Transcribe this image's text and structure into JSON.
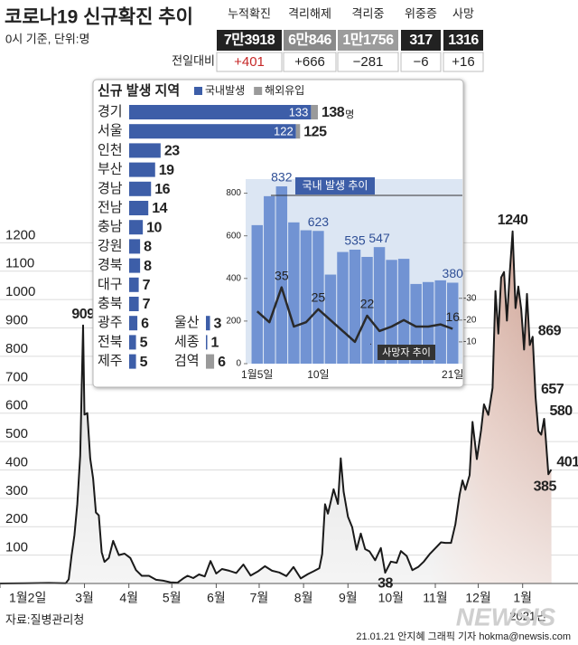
{
  "header": {
    "title": "코로나19 신규확진 추이",
    "subtitle": "0시 기준, 단위:명"
  },
  "stats": {
    "row_label": "전일대비",
    "columns": [
      {
        "name": "누적확진",
        "value": "7만3918",
        "change": "+401"
      },
      {
        "name": "격리해제",
        "value": "6만846",
        "change": "+666"
      },
      {
        "name": "격리중",
        "value": "1만1756",
        "change": "−281"
      },
      {
        "name": "위중증",
        "value": "317",
        "change": "−6"
      },
      {
        "name": "사망",
        "value": "1316",
        "change": "+16"
      }
    ]
  },
  "chart_data": [
    {
      "type": "area",
      "color": "#1a1a1a",
      "x": [
        "2020-01-02",
        "2020-01-20",
        "2020-02-05",
        "2020-02-17",
        "2020-02-19",
        "2020-02-21",
        "2020-02-23",
        "2020-02-25",
        "2020-02-27",
        "2020-02-29",
        "2020-03-01",
        "2020-03-03",
        "2020-03-05",
        "2020-03-07",
        "2020-03-09",
        "2020-03-11",
        "2020-03-13",
        "2020-03-15",
        "2020-03-18",
        "2020-03-21",
        "2020-03-25",
        "2020-03-29",
        "2020-04-02",
        "2020-04-06",
        "2020-04-10",
        "2020-04-15",
        "2020-04-20",
        "2020-04-25",
        "2020-04-30",
        "2020-05-05",
        "2020-05-09",
        "2020-05-12",
        "2020-05-16",
        "2020-05-20",
        "2020-05-24",
        "2020-05-28",
        "2020-06-01",
        "2020-06-05",
        "2020-06-10",
        "2020-06-15",
        "2020-06-20",
        "2020-06-25",
        "2020-06-30",
        "2020-07-05",
        "2020-07-10",
        "2020-07-15",
        "2020-07-20",
        "2020-07-25",
        "2020-07-30",
        "2020-08-04",
        "2020-08-08",
        "2020-08-12",
        "2020-08-14",
        "2020-08-16",
        "2020-08-18",
        "2020-08-20",
        "2020-08-22",
        "2020-08-25",
        "2020-08-27",
        "2020-08-29",
        "2020-09-01",
        "2020-09-04",
        "2020-09-07",
        "2020-09-10",
        "2020-09-13",
        "2020-09-16",
        "2020-09-20",
        "2020-09-24",
        "2020-09-27",
        "2020-10-01",
        "2020-10-05",
        "2020-10-08",
        "2020-10-12",
        "2020-10-16",
        "2020-10-20",
        "2020-10-24",
        "2020-10-28",
        "2020-11-01",
        "2020-11-05",
        "2020-11-08",
        "2020-11-12",
        "2020-11-15",
        "2020-11-18",
        "2020-11-20",
        "2020-11-22",
        "2020-11-25",
        "2020-11-27",
        "2020-11-30",
        "2020-12-03",
        "2020-12-05",
        "2020-12-08",
        "2020-12-11",
        "2020-12-13",
        "2020-12-15",
        "2020-12-17",
        "2020-12-19",
        "2020-12-21",
        "2020-12-23",
        "2020-12-25",
        "2020-12-27",
        "2020-12-29",
        "2020-12-31",
        "2021-01-02",
        "2021-01-04",
        "2021-01-06",
        "2021-01-08",
        "2021-01-10",
        "2021-01-12",
        "2021-01-14",
        "2021-01-16",
        "2021-01-17",
        "2021-01-19",
        "2021-01-21"
      ],
      "values": [
        0,
        1,
        2,
        1,
        15,
        100,
        170,
        280,
        450,
        909,
        595,
        600,
        440,
        370,
        250,
        240,
        110,
        76,
        90,
        150,
        100,
        105,
        90,
        47,
        27,
        27,
        13,
        10,
        4,
        3,
        18,
        27,
        19,
        32,
        25,
        79,
        35,
        51,
        45,
        37,
        67,
        28,
        42,
        61,
        45,
        39,
        26,
        58,
        18,
        33,
        43,
        54,
        103,
        279,
        246,
        288,
        332,
        280,
        441,
        323,
        235,
        198,
        119,
        176,
        121,
        113,
        82,
        125,
        38,
        77,
        73,
        114,
        97,
        47,
        58,
        77,
        103,
        124,
        145,
        143,
        143,
        208,
        313,
        363,
        330,
        382,
        569,
        438,
        540,
        631,
        594,
        689,
        1030,
        880,
        1078,
        1097,
        926,
        1092,
        1240,
        970,
        1046,
        967,
        824,
        1020,
        840,
        869,
        657,
        537,
        524,
        580,
        520,
        385,
        401
      ],
      "value_labels": [
        null,
        null,
        null,
        null,
        null,
        null,
        null,
        null,
        null,
        "909",
        null,
        null,
        null,
        null,
        null,
        null,
        null,
        null,
        null,
        null,
        null,
        null,
        null,
        null,
        null,
        null,
        null,
        null,
        null,
        null,
        null,
        null,
        null,
        null,
        null,
        null,
        null,
        null,
        null,
        null,
        null,
        null,
        null,
        null,
        null,
        null,
        null,
        null,
        null,
        null,
        null,
        null,
        null,
        null,
        null,
        null,
        null,
        null,
        null,
        null,
        null,
        null,
        null,
        null,
        null,
        null,
        null,
        null,
        "38",
        null,
        null,
        null,
        null,
        null,
        null,
        null,
        null,
        null,
        null,
        null,
        null,
        null,
        null,
        null,
        null,
        null,
        null,
        null,
        null,
        null,
        null,
        null,
        null,
        null,
        null,
        null,
        null,
        null,
        "1240",
        null,
        null,
        null,
        null,
        null,
        null,
        "869",
        "657",
        null,
        null,
        "580",
        null,
        "385",
        "401"
      ],
      "xlim": [
        "2020-01-02",
        "2021-01-22"
      ],
      "xticks": [
        {
          "value": "2020-01-02",
          "label": "1월2일"
        },
        {
          "value": "2020-03-01",
          "label": "3월"
        },
        {
          "value": "2020-04-01",
          "label": "4월"
        },
        {
          "value": "2020-05-01",
          "label": "5월"
        },
        {
          "value": "2020-06-01",
          "label": "6월"
        },
        {
          "value": "2020-07-01",
          "label": "7월"
        },
        {
          "value": "2020-08-01",
          "label": "8월"
        },
        {
          "value": "2020-09-01",
          "label": "9월"
        },
        {
          "value": "2020-10-01",
          "label": "10월"
        },
        {
          "value": "2020-11-01",
          "label": "11월"
        },
        {
          "value": "2020-12-01",
          "label": "12월"
        },
        {
          "value": "2021-01-01",
          "label": "1월"
        }
      ],
      "x_sublabel": "2021년",
      "ylim": [
        0,
        1300
      ],
      "yticks": [
        100,
        200,
        300,
        400,
        500,
        600,
        700,
        800,
        900,
        1000,
        1100,
        1200
      ],
      "grid": true
    },
    {
      "type": "hbar-stacked",
      "title": "신규 발생 지역",
      "unit": "명",
      "categories": [
        "경기",
        "서울",
        "인천",
        "부산",
        "경남",
        "전남",
        "충남",
        "강원",
        "경북",
        "대구",
        "충북",
        "광주",
        "전북",
        "제주",
        "울산",
        "세종",
        "검역"
      ],
      "series": [
        {
          "name": "국내발생",
          "color": "#3d5ea8",
          "values": [
            133,
            122,
            23,
            19,
            16,
            14,
            10,
            8,
            8,
            7,
            7,
            6,
            5,
            5,
            3,
            1,
            0
          ],
          "value_labels": [
            "133",
            "122",
            null,
            null,
            null,
            null,
            null,
            null,
            null,
            null,
            null,
            null,
            null,
            null,
            null,
            null,
            null
          ]
        },
        {
          "name": "해외유입",
          "color": "#9a9a9a",
          "values": [
            5,
            3,
            0,
            0,
            0,
            0,
            0,
            0,
            0,
            0,
            0,
            0,
            0,
            0,
            0,
            0,
            6
          ]
        }
      ],
      "totals": [
        138,
        125,
        23,
        19,
        16,
        14,
        10,
        8,
        8,
        7,
        7,
        6,
        5,
        5,
        3,
        1,
        6
      ],
      "xlim": [
        0,
        140
      ]
    },
    {
      "type": "bar-line",
      "categories": [
        "1월5일",
        null,
        null,
        null,
        null,
        "10일",
        null,
        null,
        null,
        null,
        null,
        null,
        null,
        null,
        null,
        null,
        "21일"
      ],
      "series": [
        {
          "name": "국내 발생 추이",
          "color": "#7193d3",
          "values": [
            650,
            786,
            832,
            663,
            626,
            623,
            418,
            524,
            535,
            501,
            547,
            487,
            492,
            374,
            383,
            391,
            380
          ],
          "value_labels": [
            null,
            null,
            "832",
            null,
            null,
            "623",
            null,
            null,
            "535",
            null,
            "547",
            null,
            null,
            null,
            null,
            null,
            "380"
          ]
        },
        {
          "name": "사망자 추이",
          "color": "#2a2a2a",
          "axis": "y2",
          "values": [
            24,
            19,
            35,
            17,
            19,
            25,
            20,
            15,
            10,
            22,
            15,
            17,
            20,
            17,
            17,
            18,
            16
          ],
          "value_labels": [
            null,
            null,
            "35",
            null,
            null,
            "25",
            null,
            null,
            null,
            "22",
            null,
            null,
            null,
            null,
            null,
            null,
            "16"
          ]
        }
      ],
      "ylim": [
        0,
        900
      ],
      "yticks": [
        0,
        200,
        400,
        600,
        800
      ],
      "y2lim": [
        0,
        88
      ],
      "y2ticks": [
        {
          "value": 10,
          "label": "-10"
        },
        {
          "value": 20,
          "label": "-20"
        },
        {
          "value": 30,
          "label": "-30"
        }
      ]
    }
  ],
  "footer": {
    "source": "자료:질병관리청",
    "credit": "21.01.21 안지혜 그래픽 기자 hokma@newsis.com",
    "brand": "NEWSIS"
  }
}
